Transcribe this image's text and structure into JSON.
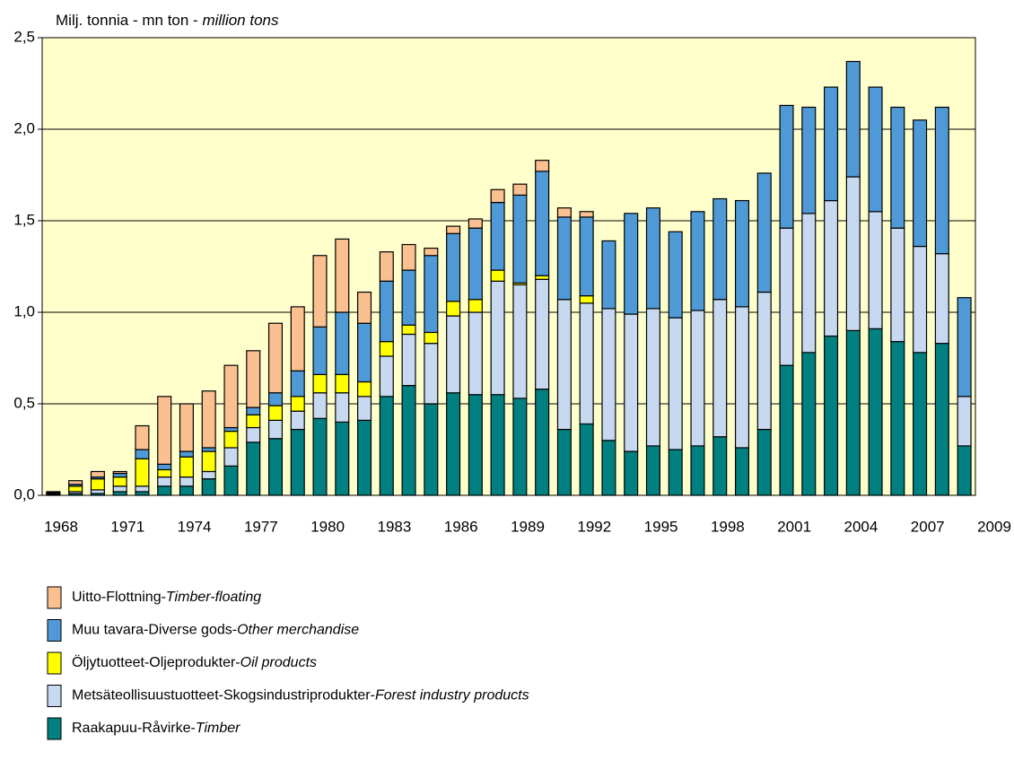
{
  "chart_data": {
    "type": "stacked_bar",
    "ylabel": "Milj. tonnia - mn ton - ",
    "ylabel_en": "million tons",
    "ylim": [
      0,
      2.5
    ],
    "yticks": [
      {
        "value": 0,
        "label": "0,0"
      },
      {
        "value": 0.5,
        "label": "0,5"
      },
      {
        "value": 1,
        "label": "1,0"
      },
      {
        "value": 1.5,
        "label": "1,5"
      },
      {
        "value": 2,
        "label": "2,0"
      },
      {
        "value": 2.5,
        "label": "2,5"
      }
    ],
    "xticks": [
      "1968",
      "1971",
      "1974",
      "1977",
      "1980",
      "1983",
      "1986",
      "1989",
      "1992",
      "1995",
      "1998",
      "2001",
      "2004",
      "2007",
      "2009"
    ],
    "grid": true,
    "background": "#ffffcc",
    "series": [
      {
        "name": "Raakapuu-Råvirke-",
        "name_en": "Timber",
        "color": "#008080",
        "values": [
          0.005,
          0.01,
          0.01,
          0.02,
          0.02,
          0.05,
          0.05,
          0.09,
          0.16,
          0.29,
          0.31,
          0.36,
          0.42,
          0.4,
          0.41,
          0.54,
          0.6,
          0.5,
          0.56,
          0.55,
          0.55,
          0.53,
          0.58,
          0.36,
          0.39,
          0.3,
          0.24,
          0.27,
          0.25,
          0.27,
          0.32,
          0.26,
          0.36,
          0.71,
          0.78,
          0.87,
          0.9,
          0.91,
          0.84,
          0.78,
          0.83,
          0.27
        ]
      },
      {
        "name": "Metsäteollisuustuotteet-Skogsindustriprodukter-",
        "name_en": "Forest industry products",
        "color": "#c6d9f1",
        "values": [
          0.005,
          0.01,
          0.02,
          0.03,
          0.03,
          0.05,
          0.05,
          0.04,
          0.1,
          0.08,
          0.1,
          0.1,
          0.14,
          0.16,
          0.13,
          0.22,
          0.28,
          0.33,
          0.42,
          0.45,
          0.62,
          0.62,
          0.6,
          0.71,
          0.66,
          0.72,
          0.75,
          0.75,
          0.72,
          0.74,
          0.75,
          0.77,
          0.75,
          0.75,
          0.76,
          0.74,
          0.84,
          0.64,
          0.62,
          0.58,
          0.49,
          0.27
        ]
      },
      {
        "name": "Öljytuotteet-Oljeprodukter-",
        "name_en": "Oil products",
        "color": "#ffff00",
        "values": [
          0,
          0.03,
          0.06,
          0.05,
          0.15,
          0.04,
          0.11,
          0.11,
          0.09,
          0.07,
          0.08,
          0.08,
          0.1,
          0.1,
          0.08,
          0.08,
          0.05,
          0.06,
          0.08,
          0.07,
          0.06,
          0.01,
          0.02,
          0,
          0.04,
          0,
          0,
          0,
          0,
          0,
          0,
          0,
          0,
          0,
          0,
          0,
          0,
          0,
          0,
          0,
          0,
          0
        ]
      },
      {
        "name": "Muu tavara-Diverse gods-",
        "name_en": "Other merchandise",
        "color": "#4f9ad6",
        "values": [
          0.005,
          0.01,
          0.01,
          0.02,
          0.05,
          0.03,
          0.03,
          0.02,
          0.02,
          0.04,
          0.07,
          0.14,
          0.26,
          0.34,
          0.32,
          0.33,
          0.3,
          0.42,
          0.37,
          0.39,
          0.37,
          0.48,
          0.57,
          0.45,
          0.43,
          0.37,
          0.55,
          0.55,
          0.47,
          0.54,
          0.55,
          0.58,
          0.65,
          0.67,
          0.58,
          0.62,
          0.63,
          0.68,
          0.66,
          0.69,
          0.8,
          0.54
        ]
      },
      {
        "name": "Uitto-Flottning-",
        "name_en": "Timber-floating",
        "color": "#fac090",
        "values": [
          0.005,
          0.02,
          0.03,
          0.01,
          0.13,
          0.37,
          0.26,
          0.31,
          0.34,
          0.31,
          0.38,
          0.35,
          0.39,
          0.4,
          0.17,
          0.16,
          0.14,
          0.04,
          0.04,
          0.05,
          0.07,
          0.06,
          0.06,
          0.05,
          0.03,
          0,
          0,
          0,
          0,
          0,
          0,
          0,
          0,
          0,
          0,
          0,
          0,
          0,
          0,
          0,
          0,
          0
        ]
      }
    ]
  }
}
